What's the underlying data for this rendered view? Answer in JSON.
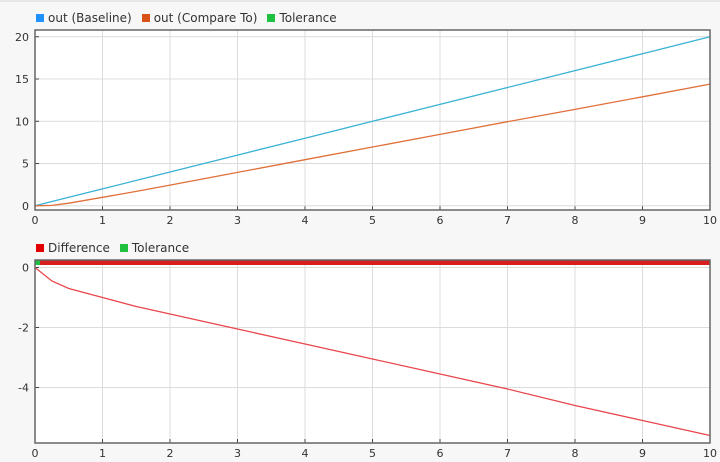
{
  "chart_data": [
    {
      "type": "line",
      "legend": [
        "out (Baseline)",
        "out (Compare To)",
        "Tolerance"
      ],
      "legend_colors": [
        "#1e90ff",
        "#d95319",
        "#1fbf3f"
      ],
      "line_colors": [
        "#3ab2d6",
        "#e0703a"
      ],
      "xlim": [
        0,
        10
      ],
      "ylim": [
        -0.5,
        20.8
      ],
      "xticks": [
        0,
        1,
        2,
        3,
        4,
        5,
        6,
        7,
        8,
        9,
        10
      ],
      "yticks": [
        0,
        5,
        10,
        15,
        20
      ],
      "grid": true,
      "x": [
        0,
        0.25,
        0.5,
        1,
        1.5,
        2,
        3,
        4,
        5,
        6,
        7,
        8,
        9,
        10
      ],
      "series": [
        {
          "name": "out (Baseline)",
          "values": [
            0,
            0.5,
            1,
            2,
            3,
            4,
            6,
            8,
            10,
            12,
            14,
            16,
            18,
            20
          ]
        },
        {
          "name": "out (Compare To)",
          "values": [
            0,
            0.05,
            0.3,
            1,
            1.7,
            2.45,
            3.95,
            5.45,
            6.95,
            8.45,
            9.95,
            11.4,
            12.9,
            14.4
          ]
        }
      ]
    },
    {
      "type": "line",
      "legend": [
        "Difference",
        "Tolerance"
      ],
      "legend_colors": [
        "#e00000",
        "#1fbf3f"
      ],
      "line_colors": [
        "#e8474c"
      ],
      "xlim": [
        0,
        10
      ],
      "ylim": [
        -5.85,
        0.25
      ],
      "xticks": [
        0,
        1,
        2,
        3,
        4,
        5,
        6,
        7,
        8,
        9,
        10
      ],
      "yticks": [
        0,
        -2,
        -4
      ],
      "grid": true,
      "x": [
        0,
        0.25,
        0.5,
        1,
        1.5,
        2,
        3,
        4,
        5,
        6,
        7,
        8,
        9,
        10
      ],
      "series": [
        {
          "name": "Difference",
          "values": [
            0,
            -0.45,
            -0.7,
            -1.0,
            -1.3,
            -1.55,
            -2.05,
            -2.55,
            -3.05,
            -3.55,
            -4.05,
            -4.6,
            -5.1,
            -5.6
          ]
        }
      ]
    }
  ]
}
